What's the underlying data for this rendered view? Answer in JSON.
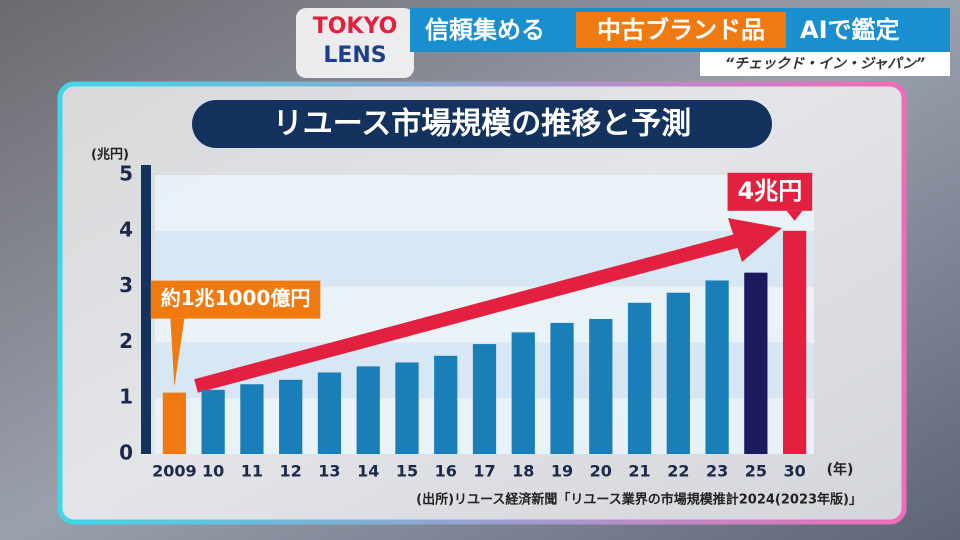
{
  "header": {
    "logo_top": "TOKYO",
    "logo_bottom": "LENS",
    "headline": [
      "信頼集める",
      "中古ブランド品",
      "AIで鑑定"
    ],
    "subtitle": "“チェックド・イン・ジャパン”"
  },
  "chart_data": {
    "type": "bar",
    "title": "リユース市場規模の推移と予測",
    "y_label": "(兆円)",
    "x_label": "(年)",
    "source": "(出所)リユース経済新聞「リユース業界の市場規模推計2024(2023年版)」",
    "categories": [
      "2009",
      "10",
      "11",
      "12",
      "13",
      "14",
      "15",
      "16",
      "17",
      "18",
      "19",
      "20",
      "21",
      "22",
      "23",
      "25",
      "30"
    ],
    "values": [
      1.1,
      1.15,
      1.25,
      1.33,
      1.46,
      1.57,
      1.64,
      1.76,
      1.97,
      2.18,
      2.35,
      2.42,
      2.71,
      2.89,
      3.11,
      3.25,
      4.0
    ],
    "value_labels": [
      "約1兆1000億円",
      null,
      null,
      null,
      null,
      null,
      null,
      null,
      null,
      null,
      null,
      null,
      null,
      null,
      null,
      null,
      "4兆円"
    ],
    "colors": [
      "#f07a12",
      "#1a7fb8",
      "#1a7fb8",
      "#1a7fb8",
      "#1a7fb8",
      "#1a7fb8",
      "#1a7fb8",
      "#1a7fb8",
      "#1a7fb8",
      "#1a7fb8",
      "#1a7fb8",
      "#1a7fb8",
      "#1a7fb8",
      "#1a7fb8",
      "#1a7fb8",
      "#1c1a5e",
      "#e3203f"
    ],
    "ylim": [
      0,
      5
    ],
    "yticks": [
      0,
      1,
      2,
      3,
      4,
      5
    ],
    "grid": true
  }
}
